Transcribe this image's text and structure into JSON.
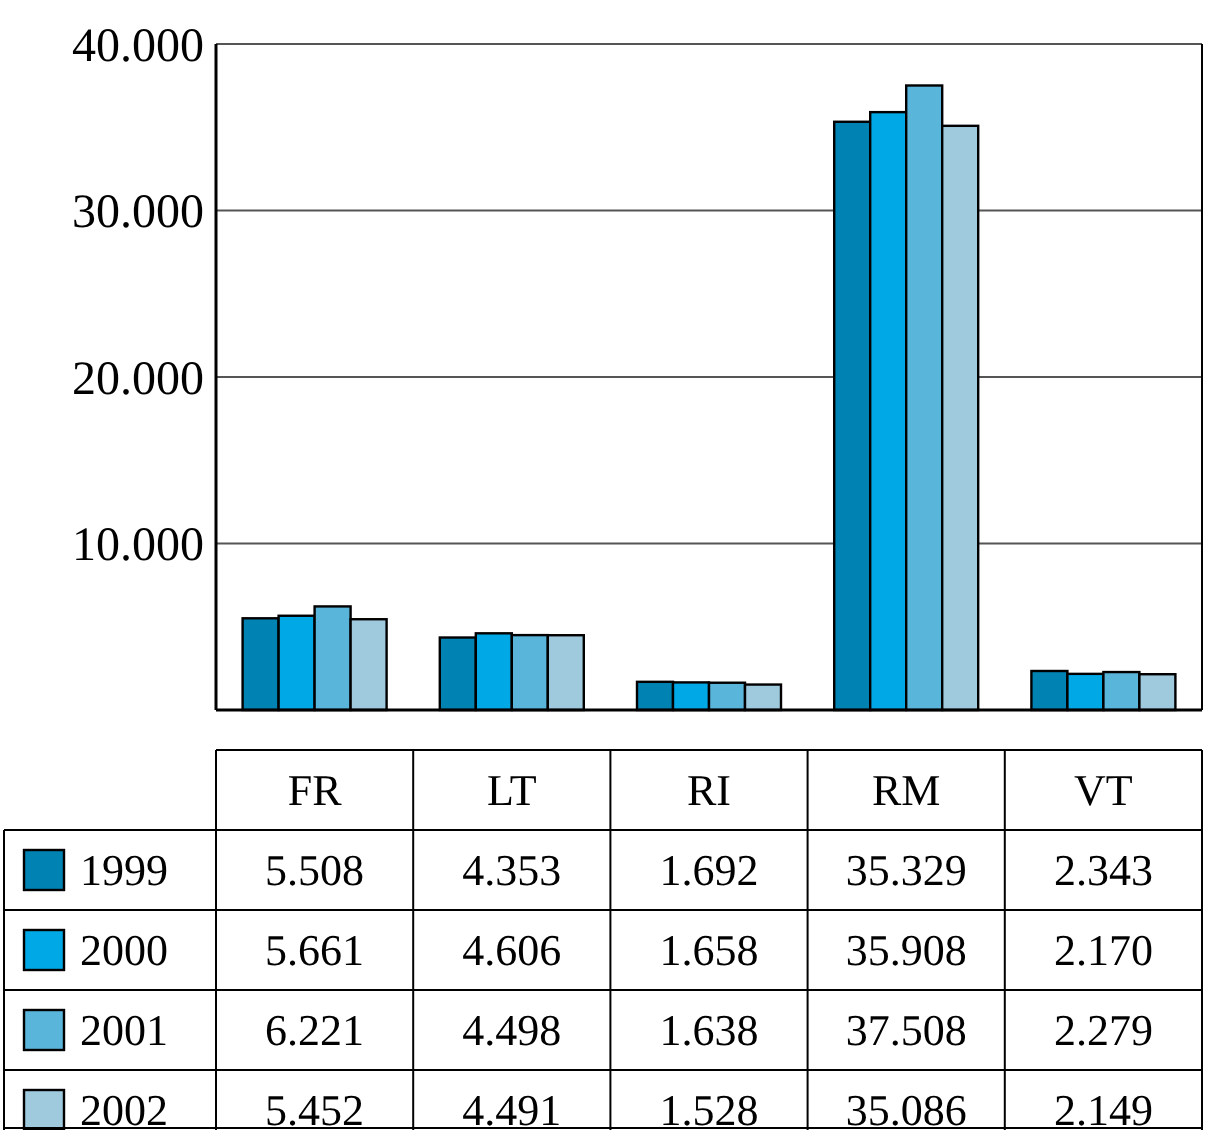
{
  "chart_data": {
    "type": "bar",
    "categories": [
      "FR",
      "LT",
      "RI",
      "RM",
      "VT"
    ],
    "series": [
      {
        "name": "1999",
        "color": "#0083b3",
        "values": [
          5508,
          4353,
          1692,
          35329,
          2343
        ],
        "value_labels": [
          "5.508",
          "4.353",
          "1.692",
          "35.329",
          "2.343"
        ]
      },
      {
        "name": "2000",
        "color": "#00a9e6",
        "values": [
          5661,
          4606,
          1658,
          35908,
          2170
        ],
        "value_labels": [
          "5.661",
          "4.606",
          "1.658",
          "35.908",
          "2.170"
        ]
      },
      {
        "name": "2001",
        "color": "#5ab5da",
        "values": [
          6221,
          4498,
          1638,
          37508,
          2279
        ],
        "value_labels": [
          "6.221",
          "4.498",
          "1.638",
          "37.508",
          "2.279"
        ]
      },
      {
        "name": "2002",
        "color": "#9fc9dc",
        "values": [
          5452,
          4491,
          1528,
          35086,
          2149
        ],
        "value_labels": [
          "5.452",
          "4.491",
          "1.528",
          "35.086",
          "2.149"
        ]
      }
    ],
    "ylim": [
      0,
      40000
    ],
    "yticks": [
      {
        "value": 10000,
        "label": "10.000"
      },
      {
        "value": 20000,
        "label": "20.000"
      },
      {
        "value": 30000,
        "label": "30.000"
      },
      {
        "value": 40000,
        "label": "40.000"
      }
    ],
    "grid": "y",
    "legend": "bottom"
  }
}
